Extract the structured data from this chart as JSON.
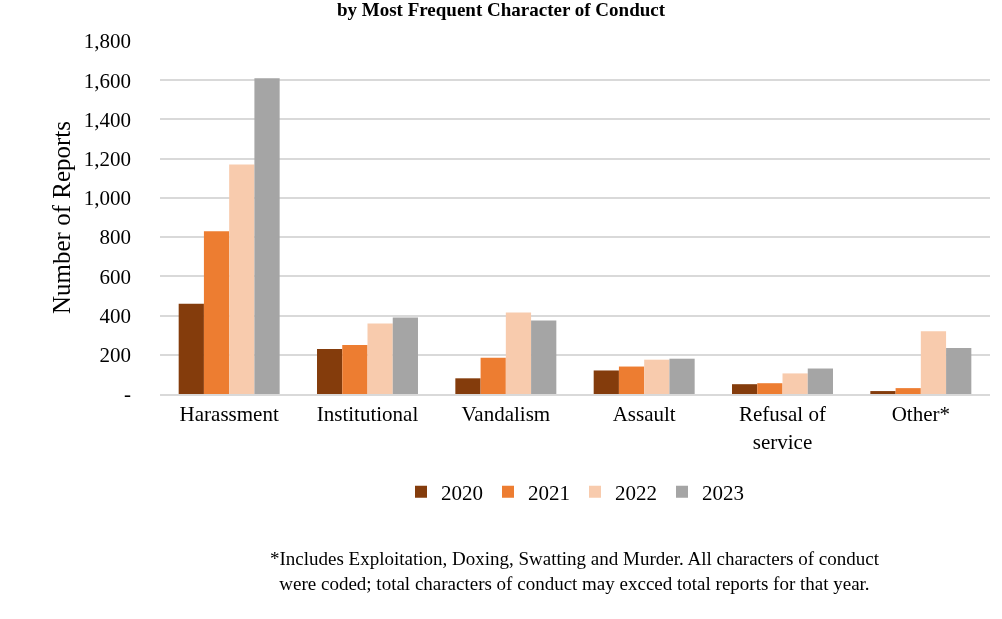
{
  "chart_data": {
    "type": "bar",
    "title": "by Most Frequent Character of Conduct",
    "ylabel": "Number of Reports",
    "categories": [
      "Harassment",
      "Institutional",
      "Vandalism",
      "Assault",
      "Refusal of service",
      "Other*"
    ],
    "series": [
      {
        "name": "2020",
        "color": "#843c0c",
        "values": [
          460,
          230,
          80,
          120,
          50,
          15
        ]
      },
      {
        "name": "2021",
        "color": "#ed7d31",
        "values": [
          830,
          250,
          185,
          140,
          55,
          30
        ]
      },
      {
        "name": "2022",
        "color": "#f8cbad",
        "values": [
          1170,
          360,
          415,
          175,
          105,
          320
        ]
      },
      {
        "name": "2023",
        "color": "#a5a5a5",
        "values": [
          1610,
          390,
          375,
          180,
          130,
          235
        ]
      }
    ],
    "ylim": [
      0,
      1800
    ],
    "yticks": [
      {
        "value": 0,
        "label": "-"
      },
      200,
      400,
      600,
      800,
      {
        "value": 1000,
        "label": "1,000"
      },
      {
        "value": 1200,
        "label": "1,200"
      },
      {
        "value": 1400,
        "label": "1,400"
      },
      {
        "value": 1600,
        "label": "1,600"
      },
      {
        "value": 1800,
        "label": "1,800"
      }
    ],
    "grid": "y",
    "legend": "bottom",
    "annotations": [
      "*Includes Exploitation, Doxing, Swatting and Murder. All characters of conduct were coded; total characters of conduct may excced total reports for that year."
    ]
  }
}
